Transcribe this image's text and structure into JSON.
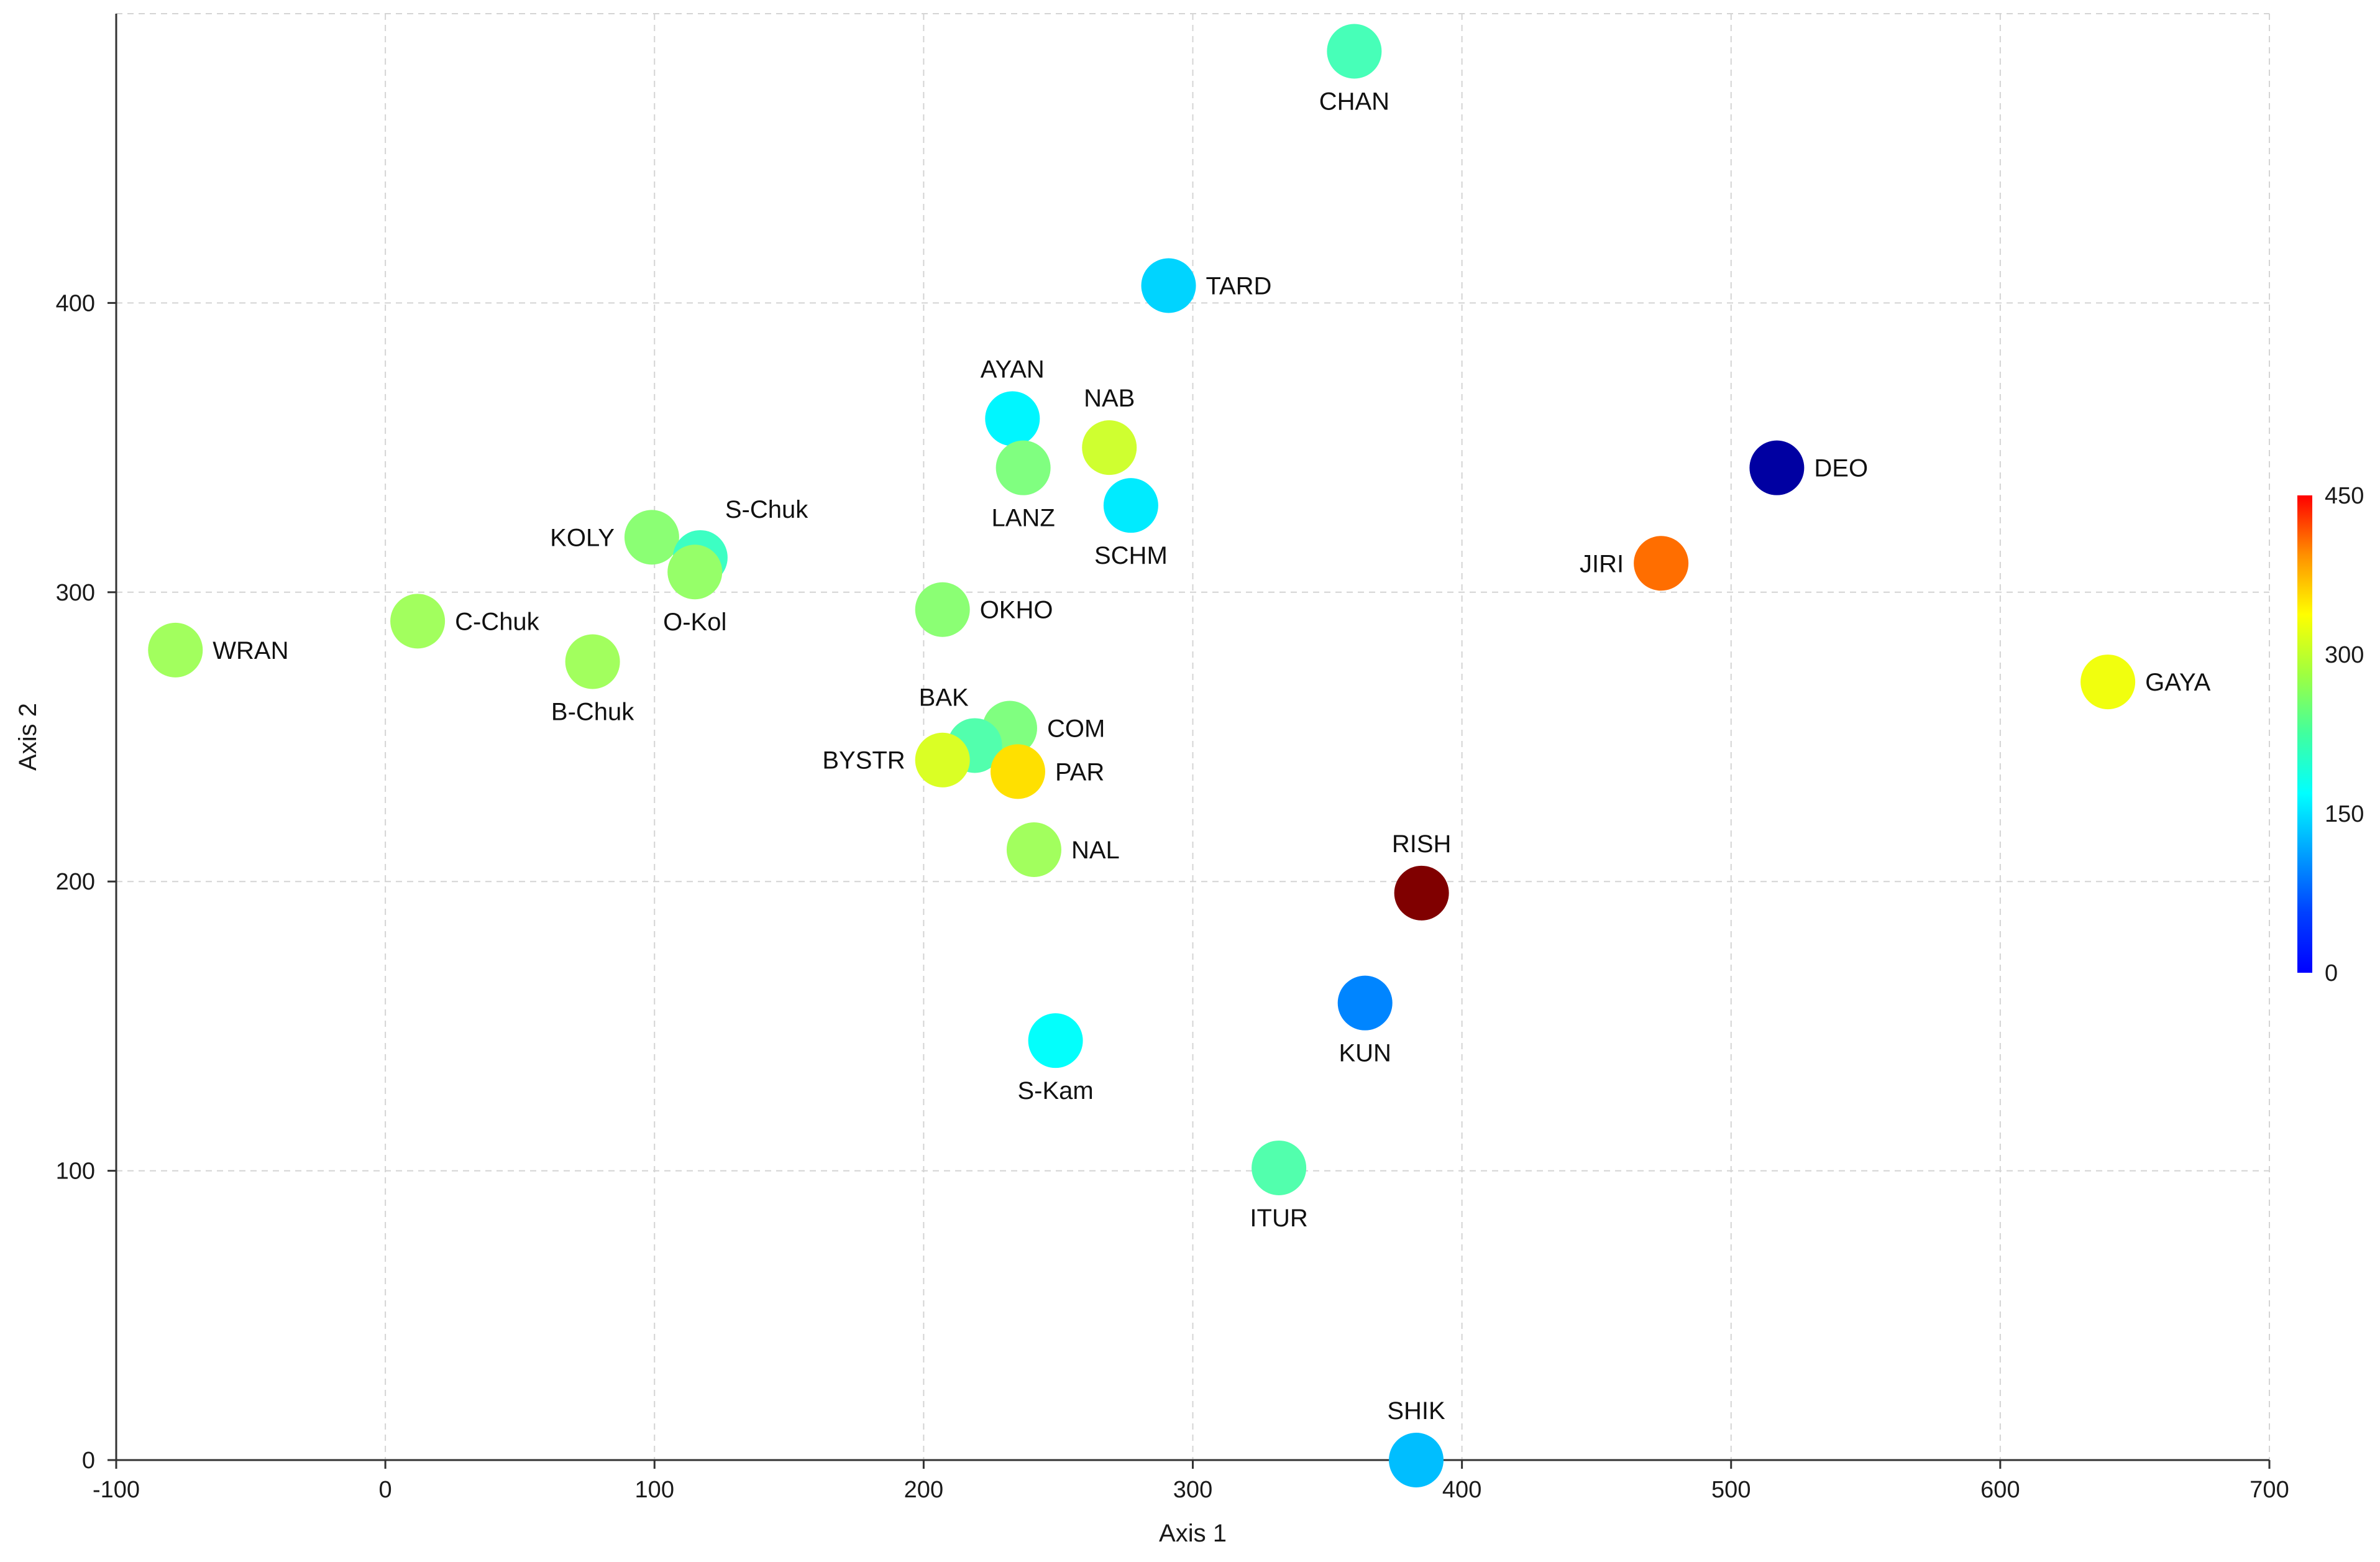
{
  "chart_data": {
    "type": "scatter",
    "title": "",
    "xlabel": "Axis 1",
    "ylabel": "Axis 2",
    "xlim": [
      -100,
      700
    ],
    "ylim": [
      0,
      500
    ],
    "x_ticks": [
      -100,
      0,
      100,
      200,
      300,
      400,
      500,
      600,
      700
    ],
    "y_ticks": [
      0,
      100,
      200,
      300,
      400
    ],
    "grid": true,
    "colorbar": {
      "min": 0,
      "max": 450,
      "ticks": [
        0,
        150,
        300,
        450
      ],
      "colormap": "jet",
      "position": "right"
    },
    "points": [
      {
        "label": "CHAN",
        "x": 360,
        "y": 487,
        "value": 200,
        "label_pos": "below"
      },
      {
        "label": "TARD",
        "x": 291,
        "y": 406,
        "value": 150,
        "label_pos": "right"
      },
      {
        "label": "AYAN",
        "x": 233,
        "y": 360,
        "value": 165,
        "label_pos": "above"
      },
      {
        "label": "NAB",
        "x": 269,
        "y": 350,
        "value": 260,
        "label_pos": "above"
      },
      {
        "label": "LANZ",
        "x": 237,
        "y": 343,
        "value": 225,
        "label_pos": "below"
      },
      {
        "label": "SCHM",
        "x": 277,
        "y": 330,
        "value": 160,
        "label_pos": "below"
      },
      {
        "label": "DEO",
        "x": 517,
        "y": 343,
        "value": 15,
        "label_pos": "right"
      },
      {
        "label": "JIRI",
        "x": 474,
        "y": 310,
        "value": 345,
        "label_pos": "left"
      },
      {
        "label": "KOLY",
        "x": 99,
        "y": 319,
        "value": 230,
        "label_pos": "left"
      },
      {
        "label": "S-Chuk",
        "x": 117,
        "y": 312,
        "value": 195,
        "label_pos": "above-right"
      },
      {
        "label": "O-Kol",
        "x": 115,
        "y": 307,
        "value": 235,
        "label_pos": "below"
      },
      {
        "label": "OKHO",
        "x": 207,
        "y": 294,
        "value": 230,
        "label_pos": "right"
      },
      {
        "label": "C-Chuk",
        "x": 12,
        "y": 290,
        "value": 240,
        "label_pos": "right"
      },
      {
        "label": "WRAN",
        "x": -78,
        "y": 280,
        "value": 240,
        "label_pos": "right"
      },
      {
        "label": "B-Chuk",
        "x": 77,
        "y": 276,
        "value": 240,
        "label_pos": "below"
      },
      {
        "label": "GAYA",
        "x": 640,
        "y": 269,
        "value": 275,
        "label_pos": "right"
      },
      {
        "label": "COM",
        "x": 232,
        "y": 253,
        "value": 225,
        "label_pos": "right"
      },
      {
        "label": "BAK",
        "x": 219,
        "y": 247,
        "value": 205,
        "label_pos": "above-left"
      },
      {
        "label": "BYSTR",
        "x": 207,
        "y": 242,
        "value": 265,
        "label_pos": "left"
      },
      {
        "label": "PAR",
        "x": 235,
        "y": 238,
        "value": 295,
        "label_pos": "right"
      },
      {
        "label": "NAL",
        "x": 241,
        "y": 211,
        "value": 240,
        "label_pos": "right"
      },
      {
        "label": "RISH",
        "x": 385,
        "y": 196,
        "value": 450,
        "label_pos": "above"
      },
      {
        "label": "KUN",
        "x": 364,
        "y": 158,
        "value": 115,
        "label_pos": "below"
      },
      {
        "label": "S-Kam",
        "x": 249,
        "y": 145,
        "value": 170,
        "label_pos": "below"
      },
      {
        "label": "ITUR",
        "x": 332,
        "y": 101,
        "value": 205,
        "label_pos": "below"
      },
      {
        "label": "SHIK",
        "x": 383,
        "y": 0,
        "value": 140,
        "label_pos": "above"
      }
    ]
  }
}
